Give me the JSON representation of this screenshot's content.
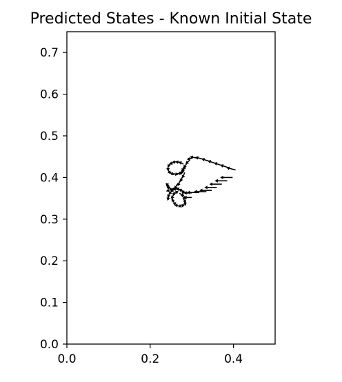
{
  "chart_data": {
    "type": "quiver",
    "title": "Predicted States - Known Initial State",
    "xlabel": "",
    "ylabel": "",
    "xlim": [
      0.0,
      0.5
    ],
    "ylim": [
      0.0,
      0.75
    ],
    "xticks": [
      "0.0",
      "0.2",
      "0.4"
    ],
    "yticks": [
      "0.0",
      "0.1",
      "0.2",
      "0.3",
      "0.4",
      "0.5",
      "0.6",
      "0.7"
    ],
    "xtick_values": [
      0.0,
      0.2,
      0.4
    ],
    "ytick_values": [
      0.0,
      0.1,
      0.2,
      0.3,
      0.4,
      0.5,
      0.6,
      0.7
    ],
    "grid": false,
    "color": "#000000",
    "arrows": [
      {
        "x": 0.405,
        "y": 0.418,
        "dx": -0.022,
        "dy": 0.006
      },
      {
        "x": 0.39,
        "y": 0.423,
        "dx": -0.022,
        "dy": 0.007
      },
      {
        "x": 0.375,
        "y": 0.428,
        "dx": -0.022,
        "dy": 0.007
      },
      {
        "x": 0.36,
        "y": 0.433,
        "dx": -0.022,
        "dy": 0.007
      },
      {
        "x": 0.345,
        "y": 0.438,
        "dx": -0.022,
        "dy": 0.007
      },
      {
        "x": 0.33,
        "y": 0.443,
        "dx": -0.022,
        "dy": 0.006
      },
      {
        "x": 0.315,
        "y": 0.446,
        "dx": -0.02,
        "dy": 0.004
      },
      {
        "x": 0.302,
        "y": 0.447,
        "dx": -0.014,
        "dy": -0.004
      },
      {
        "x": 0.295,
        "y": 0.442,
        "dx": -0.01,
        "dy": -0.01
      },
      {
        "x": 0.288,
        "y": 0.434,
        "dx": -0.008,
        "dy": -0.012
      },
      {
        "x": 0.282,
        "y": 0.426,
        "dx": -0.006,
        "dy": -0.012
      },
      {
        "x": 0.277,
        "y": 0.418,
        "dx": -0.004,
        "dy": -0.012
      },
      {
        "x": 0.28,
        "y": 0.432,
        "dx": -0.012,
        "dy": 0.006
      },
      {
        "x": 0.272,
        "y": 0.436,
        "dx": -0.012,
        "dy": 0.002
      },
      {
        "x": 0.264,
        "y": 0.438,
        "dx": -0.012,
        "dy": -0.002
      },
      {
        "x": 0.256,
        "y": 0.437,
        "dx": -0.01,
        "dy": -0.006
      },
      {
        "x": 0.248,
        "y": 0.434,
        "dx": -0.006,
        "dy": -0.01
      },
      {
        "x": 0.243,
        "y": 0.427,
        "dx": 0.0,
        "dy": -0.012
      },
      {
        "x": 0.243,
        "y": 0.418,
        "dx": 0.006,
        "dy": -0.01
      },
      {
        "x": 0.248,
        "y": 0.412,
        "dx": 0.01,
        "dy": -0.006
      },
      {
        "x": 0.256,
        "y": 0.409,
        "dx": 0.012,
        "dy": -0.002
      },
      {
        "x": 0.265,
        "y": 0.409,
        "dx": 0.012,
        "dy": 0.002
      },
      {
        "x": 0.273,
        "y": 0.412,
        "dx": 0.01,
        "dy": 0.006
      },
      {
        "x": 0.279,
        "y": 0.418,
        "dx": 0.006,
        "dy": 0.01
      },
      {
        "x": 0.283,
        "y": 0.412,
        "dx": -0.006,
        "dy": -0.014
      },
      {
        "x": 0.278,
        "y": 0.403,
        "dx": -0.006,
        "dy": -0.014
      },
      {
        "x": 0.272,
        "y": 0.393,
        "dx": -0.006,
        "dy": -0.014
      },
      {
        "x": 0.265,
        "y": 0.384,
        "dx": -0.006,
        "dy": -0.012
      },
      {
        "x": 0.259,
        "y": 0.376,
        "dx": -0.01,
        "dy": -0.008
      },
      {
        "x": 0.25,
        "y": 0.371,
        "dx": -0.012,
        "dy": -0.004
      },
      {
        "x": 0.398,
        "y": 0.4,
        "dx": -0.03,
        "dy": 0.0
      },
      {
        "x": 0.385,
        "y": 0.392,
        "dx": -0.03,
        "dy": 0.0
      },
      {
        "x": 0.372,
        "y": 0.384,
        "dx": -0.03,
        "dy": 0.0
      },
      {
        "x": 0.36,
        "y": 0.376,
        "dx": -0.03,
        "dy": 0.0
      },
      {
        "x": 0.348,
        "y": 0.369,
        "dx": -0.03,
        "dy": 0.0
      },
      {
        "x": 0.335,
        "y": 0.366,
        "dx": -0.03,
        "dy": 0.0
      },
      {
        "x": 0.318,
        "y": 0.364,
        "dx": -0.03,
        "dy": 0.0
      },
      {
        "x": 0.3,
        "y": 0.363,
        "dx": -0.02,
        "dy": 0.0
      },
      {
        "x": 0.3,
        "y": 0.352,
        "dx": -0.02,
        "dy": 0.0
      },
      {
        "x": 0.29,
        "y": 0.362,
        "dx": -0.016,
        "dy": 0.004
      },
      {
        "x": 0.282,
        "y": 0.366,
        "dx": -0.014,
        "dy": 0.006
      },
      {
        "x": 0.274,
        "y": 0.37,
        "dx": -0.012,
        "dy": 0.004
      },
      {
        "x": 0.266,
        "y": 0.372,
        "dx": -0.012,
        "dy": 0.0
      },
      {
        "x": 0.258,
        "y": 0.371,
        "dx": -0.01,
        "dy": -0.004
      },
      {
        "x": 0.252,
        "y": 0.367,
        "dx": -0.008,
        "dy": -0.008
      },
      {
        "x": 0.246,
        "y": 0.361,
        "dx": -0.004,
        "dy": -0.01
      },
      {
        "x": 0.244,
        "y": 0.354,
        "dx": -0.002,
        "dy": -0.01
      },
      {
        "x": 0.27,
        "y": 0.362,
        "dx": 0.012,
        "dy": -0.006
      },
      {
        "x": 0.276,
        "y": 0.356,
        "dx": 0.01,
        "dy": -0.008
      },
      {
        "x": 0.28,
        "y": 0.349,
        "dx": 0.006,
        "dy": -0.01
      },
      {
        "x": 0.282,
        "y": 0.342,
        "dx": 0.004,
        "dy": -0.01
      },
      {
        "x": 0.28,
        "y": 0.336,
        "dx": -0.004,
        "dy": -0.008
      },
      {
        "x": 0.275,
        "y": 0.333,
        "dx": -0.008,
        "dy": -0.004
      },
      {
        "x": 0.268,
        "y": 0.333,
        "dx": -0.01,
        "dy": 0.0
      },
      {
        "x": 0.262,
        "y": 0.336,
        "dx": -0.008,
        "dy": 0.004
      },
      {
        "x": 0.257,
        "y": 0.341,
        "dx": -0.006,
        "dy": 0.008
      },
      {
        "x": 0.254,
        "y": 0.348,
        "dx": -0.002,
        "dy": 0.01
      },
      {
        "x": 0.255,
        "y": 0.356,
        "dx": 0.004,
        "dy": 0.01
      },
      {
        "x": 0.26,
        "y": 0.362,
        "dx": 0.008,
        "dy": 0.006
      },
      {
        "x": 0.255,
        "y": 0.37,
        "dx": -0.016,
        "dy": 0.008
      },
      {
        "x": 0.248,
        "y": 0.375,
        "dx": -0.01,
        "dy": 0.008
      },
      {
        "x": 0.243,
        "y": 0.381,
        "dx": -0.006,
        "dy": 0.006
      }
    ]
  }
}
